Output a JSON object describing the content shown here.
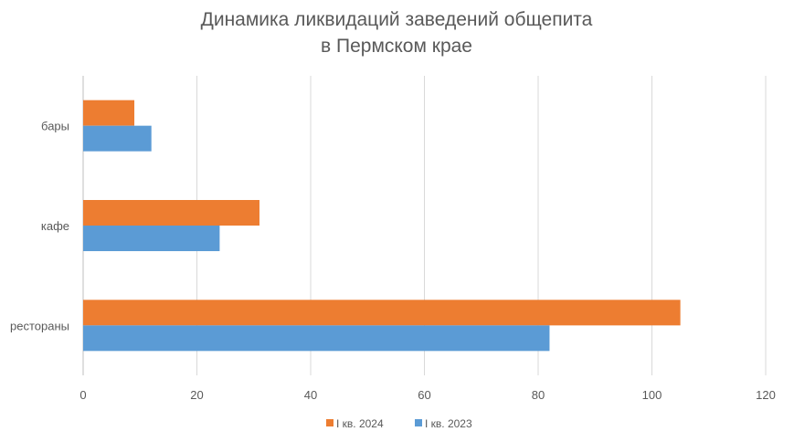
{
  "chart_data": {
    "type": "bar",
    "orientation": "horizontal",
    "title": [
      "Динамика ликвидаций заведений общепита",
      "в Пермском крае"
    ],
    "categories": [
      "бары",
      "кафе",
      "рестораны"
    ],
    "series": [
      {
        "name": "I кв. 2024",
        "color": "#ED7D31",
        "values": [
          9,
          31,
          105
        ]
      },
      {
        "name": "I кв. 2023",
        "color": "#5B9BD5",
        "values": [
          12,
          24,
          82
        ]
      }
    ],
    "xlim": [
      0,
      120
    ],
    "xticks": [
      "0",
      "20",
      "40",
      "60",
      "80",
      "100",
      "120"
    ],
    "grid": true,
    "legend": "bottom"
  }
}
